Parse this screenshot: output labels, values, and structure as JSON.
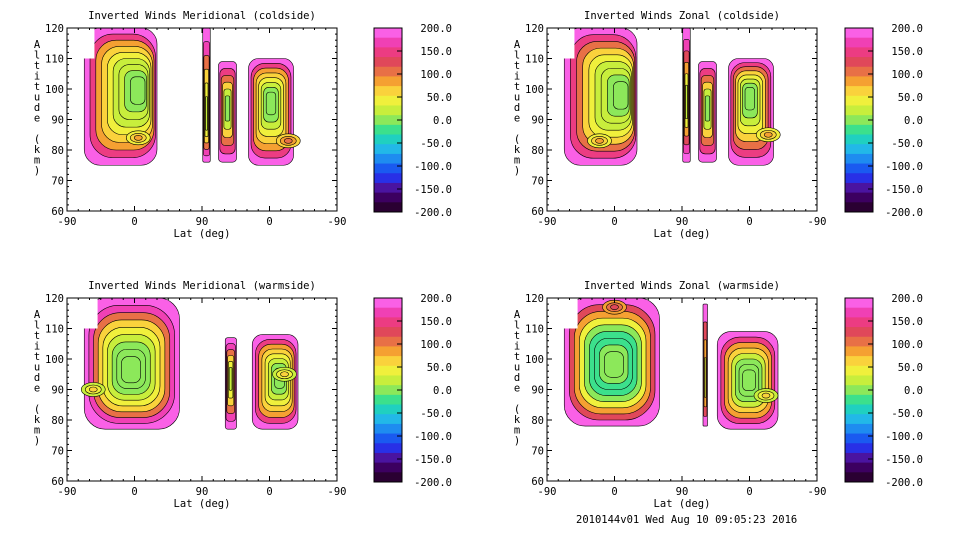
{
  "footer": "2010144v01 Wed Aug 10 09:05:23 2016",
  "colorbar": {
    "ticks": [
      "200.0",
      "150.0",
      "100.0",
      "50.0",
      "0.0",
      "-50.0",
      "-100.0",
      "-150.0",
      "-200.0"
    ],
    "min": -200,
    "max": 200,
    "colors": [
      "#2a0032",
      "#3c0060",
      "#4a14a0",
      "#2830e6",
      "#1a5af0",
      "#1e8cf0",
      "#22b8e8",
      "#20d0c0",
      "#3ce08c",
      "#8ce85a",
      "#c8ee3c",
      "#f0f03c",
      "#fad23c",
      "#f5a032",
      "#e87046",
      "#e0485a",
      "#ec3c82",
      "#f040b4",
      "#fa60e6"
    ]
  },
  "charts": [
    {
      "title": "Inverted Winds Meridional (coldside)",
      "xlabel": "Lat (deg)",
      "ylabel": "Altitude (km)",
      "xticks": [
        "-90",
        "0",
        "90",
        "0",
        "-90"
      ],
      "yticks": [
        "120",
        "110",
        "100",
        "90",
        "80",
        "70",
        "60"
      ],
      "ylim": [
        60,
        120
      ],
      "blobs": [
        {
          "x0": -67,
          "x1": 30,
          "y0": 75,
          "y1": 120,
          "ytop_left": 110,
          "center": [
            10,
            100
          ],
          "ring": [
            0,
            10,
            20,
            30,
            45,
            55,
            90,
            150,
            200
          ]
        },
        {
          "x0": 91,
          "x1": 101,
          "y0": 76,
          "y1": 120,
          "center": [
            96,
            90
          ],
          "ring": [
            20,
            40,
            70,
            110,
            170,
            200
          ]
        },
        {
          "x0": 112,
          "x1": 136,
          "y0": 76,
          "y1": 109,
          "center": [
            124,
            94
          ],
          "ring": [
            10,
            30,
            60,
            100,
            150,
            200
          ]
        },
        {
          "x0": 152,
          "x1": 212,
          "y0": 75,
          "y1": 110,
          "center": [
            182,
            96
          ],
          "ring": [
            0,
            10,
            20,
            35,
            55,
            90,
            150,
            200
          ]
        }
      ],
      "hot": [
        {
          "x": 205,
          "y": 83,
          "v": 60
        },
        {
          "x": 5,
          "y": 84,
          "v": 50
        }
      ]
    },
    {
      "title": "Inverted Winds Zonal (coldside)",
      "xlabel": "Lat (deg)",
      "ylabel": "Altitude (km)",
      "xticks": [
        "-90",
        "0",
        "90",
        "0",
        "-90"
      ],
      "yticks": [
        "120",
        "110",
        "100",
        "90",
        "80",
        "70",
        "60"
      ],
      "ylim": [
        60,
        120
      ],
      "blobs": [
        {
          "x0": -67,
          "x1": 30,
          "y0": 75,
          "y1": 120,
          "ytop_left": 110,
          "center": [
            15,
            98
          ],
          "ring": [
            0,
            10,
            20,
            30,
            45,
            60,
            100,
            150,
            200
          ]
        },
        {
          "x0": 91,
          "x1": 101,
          "y0": 76,
          "y1": 120,
          "center": [
            96,
            95
          ],
          "ring": [
            30,
            50,
            80,
            120,
            170,
            200
          ]
        },
        {
          "x0": 112,
          "x1": 136,
          "y0": 76,
          "y1": 109,
          "center": [
            124,
            94
          ],
          "ring": [
            10,
            30,
            60,
            100,
            150,
            200
          ]
        },
        {
          "x0": 152,
          "x1": 212,
          "y0": 75,
          "y1": 110,
          "center": [
            180,
            98
          ],
          "ring": [
            0,
            10,
            25,
            40,
            60,
            100,
            150,
            200
          ]
        }
      ],
      "hot": [
        {
          "x": 205,
          "y": 85,
          "v": 40
        },
        {
          "x": -20,
          "y": 83,
          "v": 40
        }
      ]
    },
    {
      "title": "Inverted Winds Meridional (warmside)",
      "xlabel": "Lat (deg)",
      "ylabel": "Altitude (km)",
      "xticks": [
        "-90",
        "0",
        "90",
        "0",
        "-90"
      ],
      "yticks": [
        "120",
        "110",
        "100",
        "90",
        "80",
        "70",
        "60"
      ],
      "ylim": [
        60,
        120
      ],
      "blobs": [
        {
          "x0": -67,
          "x1": 60,
          "y0": 77,
          "y1": 120,
          "ytop_left": 110,
          "center": [
            -5,
            96
          ],
          "ring": [
            10,
            0,
            -10,
            20,
            40,
            70,
            110,
            160,
            200
          ]
        },
        {
          "x0": 121,
          "x1": 136,
          "y0": 77,
          "y1": 107,
          "center": [
            128,
            94
          ],
          "ring": [
            20,
            40,
            70,
            110,
            160,
            200
          ]
        },
        {
          "x0": 157,
          "x1": 218,
          "y0": 77,
          "y1": 108,
          "center": [
            195,
            94
          ],
          "ring": [
            0,
            10,
            20,
            35,
            55,
            90,
            150,
            200
          ]
        }
      ],
      "hot": [
        {
          "x": -55,
          "y": 90,
          "v": 20
        },
        {
          "x": 200,
          "y": 95,
          "v": 30
        }
      ]
    },
    {
      "title": "Inverted Winds Zonal (warmside)",
      "xlabel": "Lat (deg)",
      "ylabel": "Altitude (km)",
      "xticks": [
        "-90",
        "0",
        "90",
        "0",
        "-90"
      ],
      "yticks": [
        "120",
        "110",
        "100",
        "90",
        "80",
        "70",
        "60"
      ],
      "ylim": [
        60,
        120
      ],
      "blobs": [
        {
          "x0": -67,
          "x1": 60,
          "y0": 78,
          "y1": 120,
          "ytop_left": 110,
          "center": [
            0,
            98
          ],
          "ring": [
            0,
            -10,
            -20,
            -30,
            10,
            40,
            80,
            130,
            200
          ]
        },
        {
          "x0": 118,
          "x1": 124,
          "y0": 78,
          "y1": 118,
          "center": [
            121,
            92
          ],
          "ring": [
            40,
            80,
            130,
            200
          ]
        },
        {
          "x0": 137,
          "x1": 218,
          "y0": 77,
          "y1": 109,
          "center": [
            180,
            93
          ],
          "ring": [
            -10,
            0,
            10,
            30,
            55,
            90,
            150,
            200
          ]
        }
      ],
      "hot": [
        {
          "x": 0,
          "y": 117,
          "v": 80
        },
        {
          "x": 202,
          "y": 88,
          "v": 25
        }
      ]
    }
  ]
}
